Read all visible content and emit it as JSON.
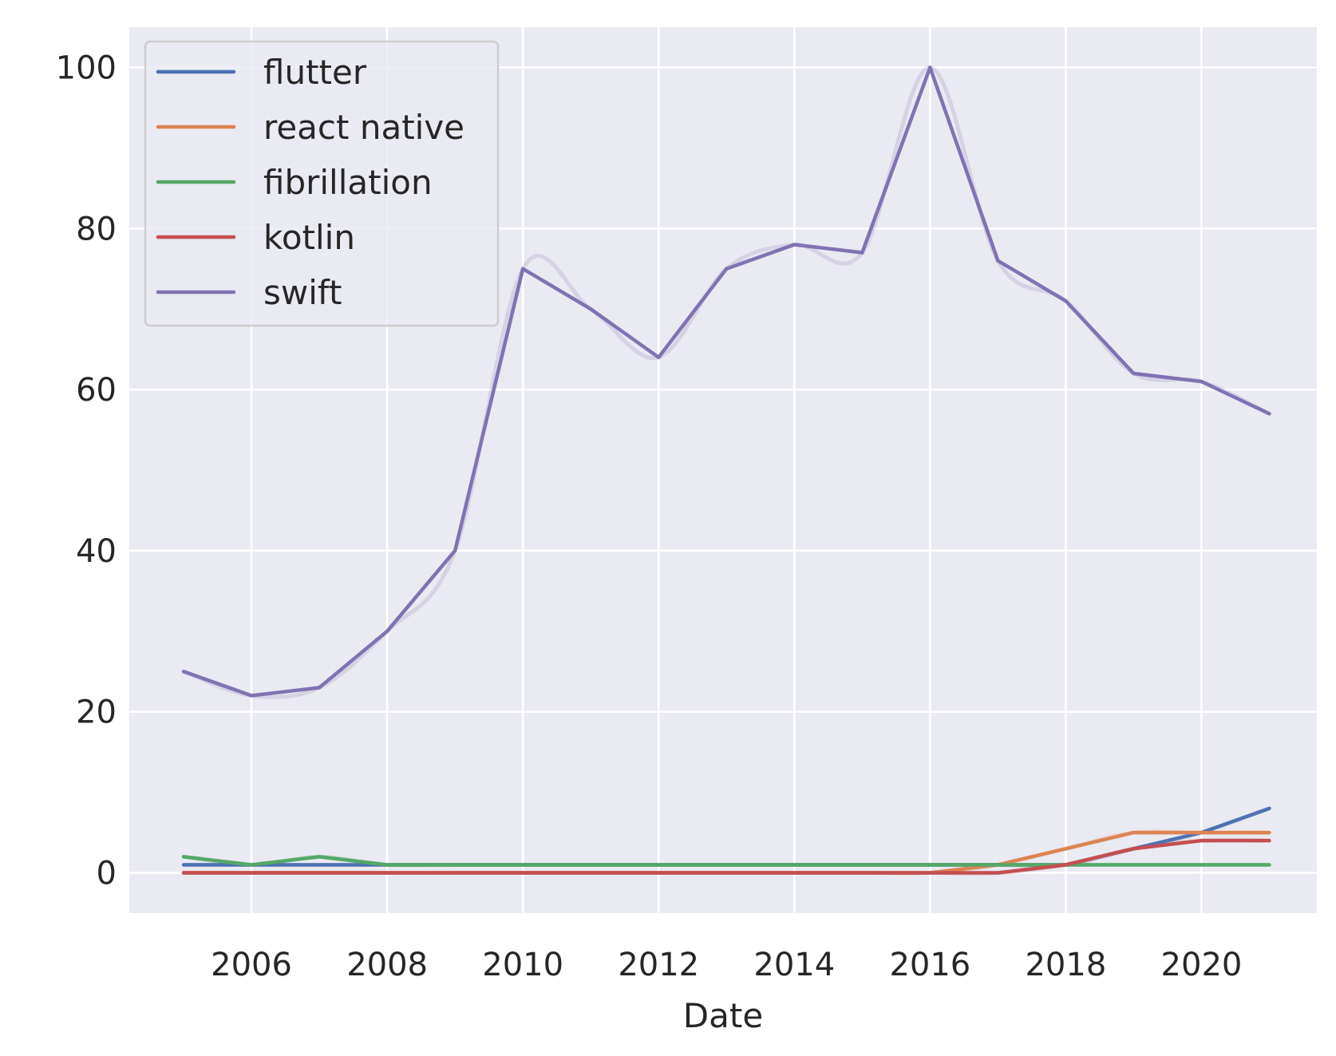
{
  "chart_data": {
    "type": "line",
    "title": "",
    "xlabel": "Date",
    "ylabel": "",
    "xlim": [
      2004.2,
      2021.7
    ],
    "ylim": [
      -5,
      105
    ],
    "x_ticks": [
      2006,
      2008,
      2010,
      2012,
      2014,
      2016,
      2018,
      2020
    ],
    "y_ticks": [
      0,
      20,
      40,
      60,
      80,
      100
    ],
    "grid": true,
    "legend_position": "top-left",
    "x": [
      2005,
      2006,
      2007,
      2008,
      2009,
      2010,
      2011,
      2012,
      2013,
      2014,
      2015,
      2016,
      2017,
      2018,
      2019,
      2020,
      2021
    ],
    "series": [
      {
        "name": "flutter",
        "color": "#4c72b0",
        "values": [
          1,
          1,
          1,
          1,
          1,
          1,
          1,
          1,
          1,
          1,
          1,
          1,
          1,
          1,
          3,
          5,
          8
        ]
      },
      {
        "name": "react native",
        "color": "#dd8452",
        "values": [
          0,
          0,
          0,
          0,
          0,
          0,
          0,
          0,
          0,
          0,
          0,
          0,
          1,
          3,
          5,
          5,
          5
        ]
      },
      {
        "name": "fibrillation",
        "color": "#55a868",
        "values": [
          2,
          1,
          2,
          1,
          1,
          1,
          1,
          1,
          1,
          1,
          1,
          1,
          1,
          1,
          1,
          1,
          1
        ]
      },
      {
        "name": "kotlin",
        "color": "#c44e52",
        "values": [
          0,
          0,
          0,
          0,
          0,
          0,
          0,
          0,
          0,
          0,
          0,
          0,
          0,
          1,
          3,
          4,
          4
        ]
      },
      {
        "name": "swift",
        "color": "#8172b3",
        "values": [
          25,
          22,
          23,
          30,
          40,
          75,
          70,
          64,
          75,
          78,
          77,
          100,
          76,
          71,
          62,
          61,
          57
        ]
      }
    ],
    "background_color": "#eaeaf2",
    "grid_color": "#ffffff"
  }
}
